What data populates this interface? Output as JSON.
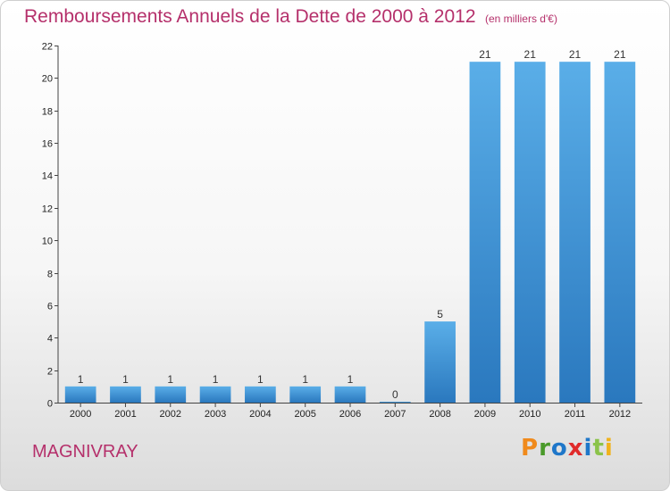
{
  "chart_data": {
    "type": "bar",
    "title": "Remboursements Annuels de la Dette de 2000 à 2012",
    "unit_note": "(en milliers d'€)",
    "categories": [
      "2000",
      "2001",
      "2002",
      "2003",
      "2004",
      "2005",
      "2006",
      "2007",
      "2008",
      "2009",
      "2010",
      "2011",
      "2012"
    ],
    "values": [
      1,
      1,
      1,
      1,
      1,
      1,
      1,
      0,
      5,
      21,
      21,
      21,
      21
    ],
    "value_labels": [
      "1",
      "1",
      "1",
      "1",
      "1",
      "1",
      "1",
      "0",
      "5",
      "21",
      "21",
      "21",
      "21"
    ],
    "ylim": [
      0,
      22
    ],
    "yticks": [
      0,
      2,
      4,
      6,
      8,
      10,
      12,
      14,
      16,
      18,
      20,
      22
    ],
    "xlabel": "",
    "ylabel": "",
    "grid": false,
    "legend": "none",
    "bar_color": "#3c8fd6"
  },
  "footer": {
    "commune": "MAGNIVRAY",
    "logo_letters": [
      {
        "ch": "P",
        "color": "#f08a1c"
      },
      {
        "ch": "r",
        "color": "#4a9a2a"
      },
      {
        "ch": "o",
        "color": "#1f77c9"
      },
      {
        "ch": "x",
        "color": "#e02b2b"
      },
      {
        "ch": "i",
        "color": "#1f77c9"
      },
      {
        "ch": "t",
        "color": "#8bc34a"
      },
      {
        "ch": "i",
        "color": "#f0b21c"
      }
    ]
  }
}
